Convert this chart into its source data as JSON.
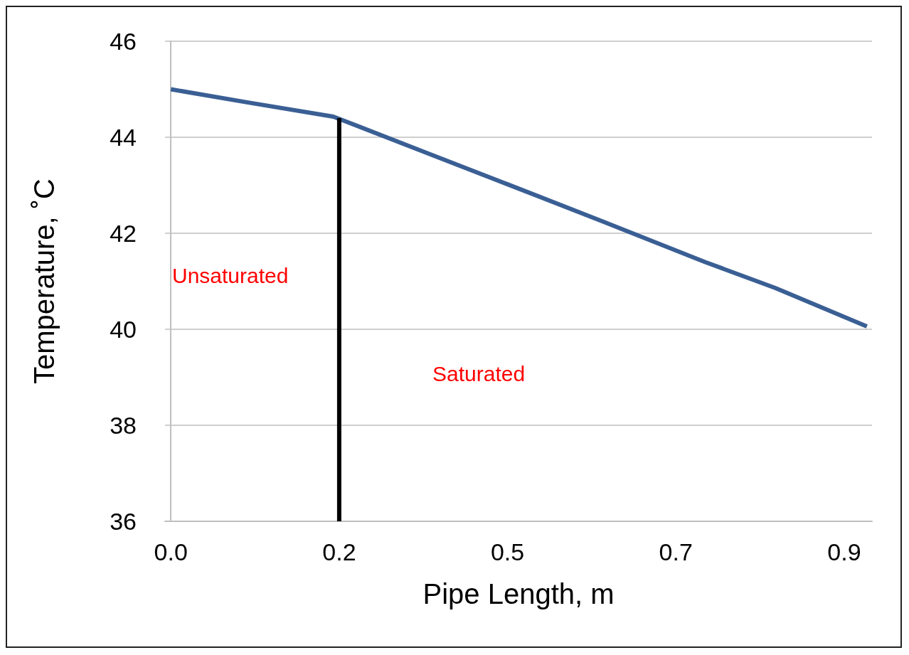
{
  "chart_data": {
    "type": "line",
    "xlabel": "Pipe Length, m",
    "ylabel": "Temperature, ˚C",
    "xlim": [
      -0.008,
      0.958
    ],
    "xticks": [
      {
        "value": 0,
        "label": "0.0"
      },
      {
        "value": 0.23,
        "label": "0.2"
      },
      {
        "value": 0.46,
        "label": "0.5"
      },
      {
        "value": 0.69,
        "label": "0.7"
      },
      {
        "value": 0.92,
        "label": "0.9"
      }
    ],
    "ylim": [
      36,
      46
    ],
    "yticks": [
      36,
      38,
      40,
      42,
      44,
      46
    ],
    "grid": "y",
    "marker": "none",
    "line_style": "solid",
    "series": [
      {
        "color": "#3a5f94",
        "x": [
          0,
          0.107,
          0.222,
          0.347,
          0.46,
          0.586,
          0.73,
          0.826,
          0.951
        ],
        "values": [
          45.0,
          44.72,
          44.43,
          43.69,
          43.02,
          42.27,
          41.4,
          40.86,
          40.06
        ]
      },
      {
        "color": "#000000",
        "x": [
          0.23,
          0.23
        ],
        "values": [
          36,
          44.4
        ]
      }
    ],
    "annotations": [
      "Unsaturated",
      "Saturated"
    ]
  }
}
